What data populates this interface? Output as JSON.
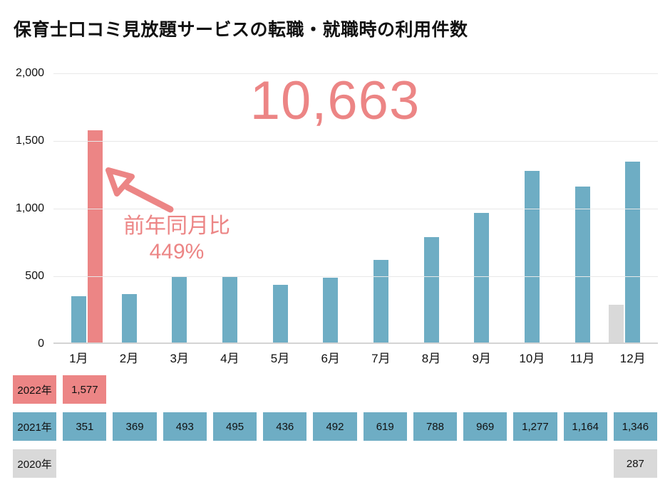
{
  "page": {
    "title": "保育士口コミ見放題サービスの転職・就職時の利用件数"
  },
  "highlight": {
    "big_number": "10,663",
    "callout_line1": "前年同月比",
    "callout_line2": "449%"
  },
  "colors": {
    "pink": "#ec8585",
    "blue": "#6eadc4",
    "gray": "#d9d9d9",
    "grid": "#e8e8e8",
    "axis": "#d4d4d4",
    "text": "#111111"
  },
  "chart_data": {
    "type": "bar",
    "title": "保育士口コミ見放題サービスの転職・就職時の利用件数",
    "categories": [
      "1月",
      "2月",
      "3月",
      "4月",
      "5月",
      "6月",
      "7月",
      "8月",
      "9月",
      "10月",
      "11月",
      "12月"
    ],
    "series": [
      {
        "name": "2020年",
        "color_key": "gray",
        "values": [
          null,
          null,
          null,
          null,
          null,
          null,
          null,
          null,
          null,
          null,
          null,
          287
        ]
      },
      {
        "name": "2021年",
        "color_key": "blue",
        "values": [
          351,
          369,
          493,
          495,
          436,
          492,
          619,
          788,
          969,
          1277,
          1164,
          1346
        ]
      },
      {
        "name": "2022年",
        "color_key": "pink",
        "values": [
          1577,
          null,
          null,
          null,
          null,
          null,
          null,
          null,
          null,
          null,
          null,
          null
        ]
      }
    ],
    "xlabel": "",
    "ylabel": "",
    "ylim": [
      0,
      2000
    ],
    "yticks": [
      {
        "label": "0",
        "value": 0
      },
      {
        "label": "500",
        "value": 500
      },
      {
        "label": "1,000",
        "value": 1000
      },
      {
        "label": "1,500",
        "value": 1500
      },
      {
        "label": "2,000",
        "value": 2000
      }
    ],
    "grid": true,
    "legend_position": "none",
    "annotations": [
      {
        "role": "big-number",
        "text": "10,663"
      },
      {
        "role": "callout",
        "text": "前年同月比 449%"
      }
    ]
  },
  "table": {
    "rows": [
      {
        "label": "2022年",
        "color_key": "pink",
        "cells": [
          "1,577",
          "",
          "",
          "",
          "",
          "",
          "",
          "",
          "",
          "",
          "",
          ""
        ]
      },
      {
        "label": "2021年",
        "color_key": "blue",
        "cells": [
          "351",
          "369",
          "493",
          "495",
          "436",
          "492",
          "619",
          "788",
          "969",
          "1,277",
          "1,164",
          "1,346"
        ]
      },
      {
        "label": "2020年",
        "color_key": "gray",
        "cells": [
          "",
          "",
          "",
          "",
          "",
          "",
          "",
          "",
          "",
          "",
          "",
          "287"
        ]
      }
    ]
  }
}
